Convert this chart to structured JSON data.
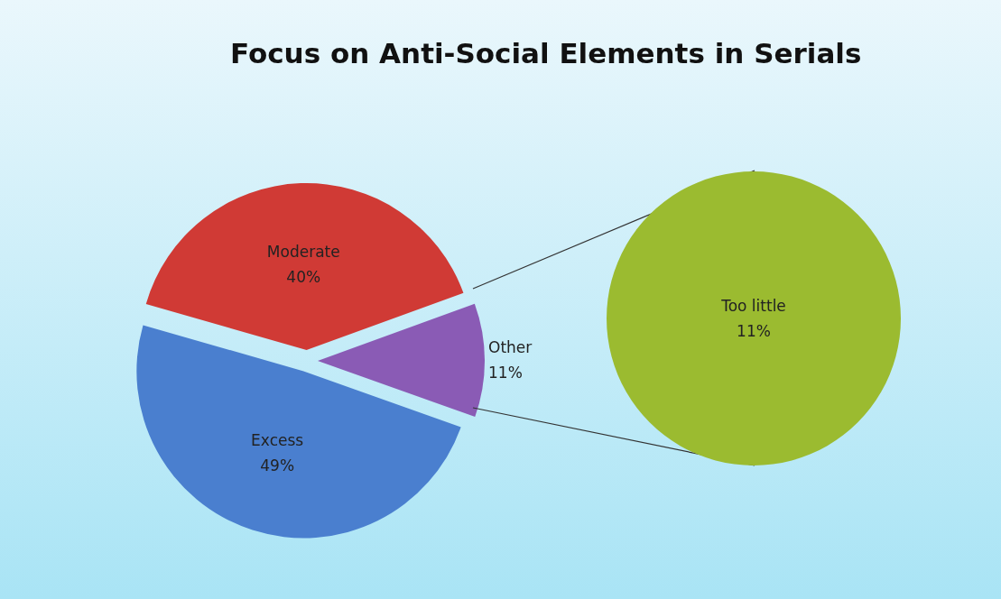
{
  "chart_data": [
    {
      "type": "pie",
      "title": "Focus on Anti-Social Elements in Serials",
      "categories": [
        "Moderate",
        "Excess",
        "Other"
      ],
      "values": [
        40,
        49,
        11
      ],
      "colors": [
        "#d03a35",
        "#4a7fcf",
        "#8a5bb5"
      ],
      "value_labels": [
        "40%",
        "49%",
        "11%"
      ]
    },
    {
      "type": "pie",
      "categories": [
        "Too little"
      ],
      "values": [
        11
      ],
      "colors": [
        "#9bbb30"
      ],
      "value_labels": [
        "11%"
      ]
    }
  ]
}
